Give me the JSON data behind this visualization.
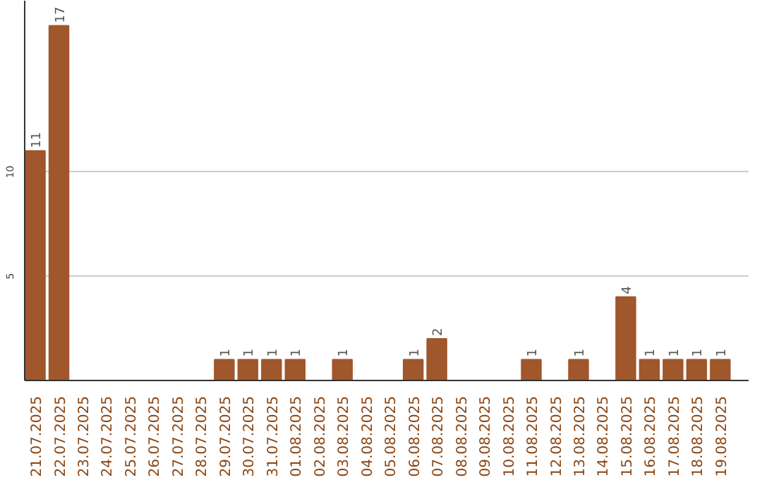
{
  "chart_data": {
    "type": "bar",
    "categories": [
      "21.07.2025",
      "22.07.2025",
      "23.07.2025",
      "24.07.2025",
      "25.07.2025",
      "26.07.2025",
      "27.07.2025",
      "28.07.2025",
      "29.07.2025",
      "30.07.2025",
      "31.07.2025",
      "01.08.2025",
      "02.08.2025",
      "03.08.2025",
      "04.08.2025",
      "05.08.2025",
      "06.08.2025",
      "07.08.2025",
      "08.08.2025",
      "09.08.2025",
      "10.08.2025",
      "11.08.2025",
      "12.08.2025",
      "13.08.2025",
      "14.08.2025",
      "15.08.2025",
      "16.08.2025",
      "17.08.2025",
      "18.08.2025",
      "19.08.2025"
    ],
    "values": [
      11,
      17,
      0,
      0,
      0,
      0,
      0,
      0,
      1,
      1,
      1,
      1,
      0,
      1,
      0,
      0,
      1,
      2,
      0,
      0,
      0,
      1,
      0,
      1,
      0,
      4,
      1,
      1,
      1,
      1
    ],
    "value_labels": [
      "11",
      "17",
      null,
      null,
      null,
      null,
      null,
      null,
      "1",
      "1",
      "1",
      "1",
      null,
      "1",
      null,
      null,
      "1",
      "2",
      null,
      null,
      null,
      "1",
      null,
      "1",
      null,
      "4",
      "1",
      "1",
      "1",
      "1"
    ],
    "color": "#a0572b",
    "ylim": [
      0,
      18.2
    ],
    "yticks": [
      5,
      10
    ],
    "grid": "y"
  }
}
